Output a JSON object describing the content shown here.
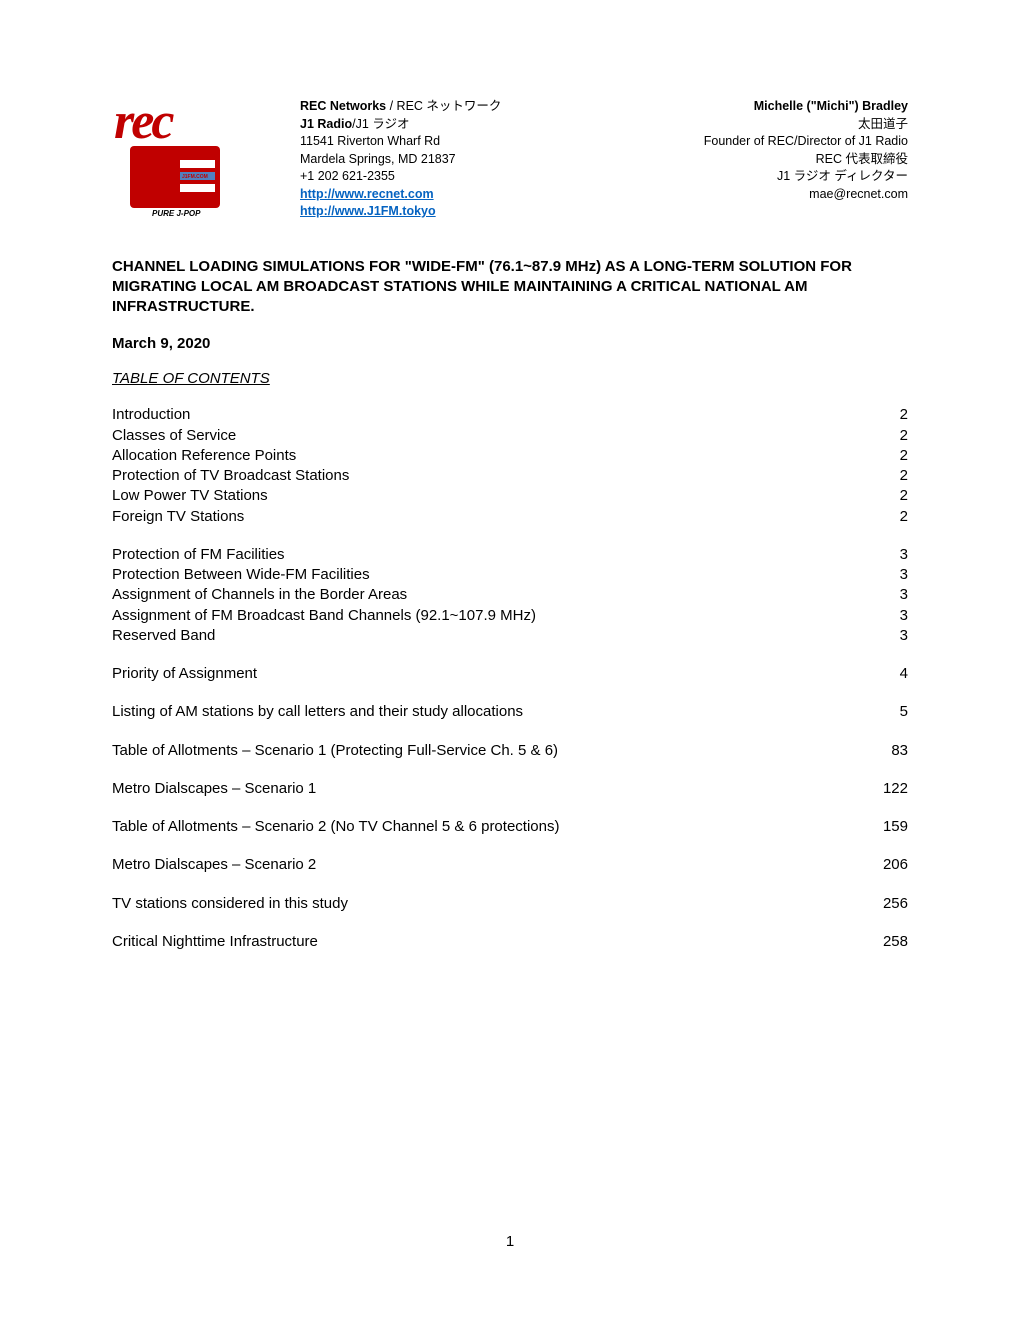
{
  "logo": {
    "rec_text": "rec",
    "j1_text": "J1",
    "subtext_url": "J1FM.COM",
    "subtext_tag": "PURE J-POP",
    "primary_color": "#c00000",
    "white": "#ffffff"
  },
  "company": {
    "line1_bold": "REC Networks",
    "line1_rest": " / REC ネットワーク",
    "line2_bold_en": "J1 Radio",
    "line2_rest": "/J1 ラジオ",
    "addr1": "11541 Riverton Wharf Rd",
    "addr2": "Mardela Springs, MD 21837",
    "phone": "+1 202 621-2355",
    "url1": "http://www.recnet.com",
    "url2": "http://www.J1FM.tokyo"
  },
  "contact": {
    "name": "Michelle (\"Michi\") Bradley",
    "name_ja": "太田道子",
    "role": "Founder of REC/Director of J1 Radio",
    "role_ja1": "REC 代表取締役",
    "role_ja2": "J1 ラジオ ディレクター",
    "email": "mae@recnet.com"
  },
  "title": "CHANNEL LOADING SIMULATIONS FOR \"WIDE-FM\" (76.1~87.9 MHz) AS A LONG-TERM SOLUTION FOR MIGRATING LOCAL AM BROADCAST STATIONS WHILE MAINTAINING A CRITICAL NATIONAL AM INFRASTRUCTURE.",
  "date": "March 9, 2020",
  "toc_heading": "TABLE OF CONTENTS",
  "toc": [
    {
      "items": [
        {
          "label": "Introduction",
          "page": "2"
        },
        {
          "label": "Classes of Service",
          "page": "2"
        },
        {
          "label": "Allocation Reference Points",
          "page": "2"
        },
        {
          "label": "Protection of TV Broadcast Stations",
          "page": "2"
        },
        {
          "label": "Low Power TV Stations",
          "page": "2"
        },
        {
          "label": "Foreign TV Stations",
          "page": "2"
        }
      ]
    },
    {
      "items": [
        {
          "label": "Protection of FM Facilities",
          "page": "3"
        },
        {
          "label": "Protection Between Wide-FM Facilities",
          "page": "3"
        },
        {
          "label": "Assignment of Channels in the Border Areas",
          "page": "3"
        },
        {
          "label": "Assignment of FM Broadcast Band Channels (92.1~107.9 MHz)",
          "page": "3"
        },
        {
          "label": "Reserved Band",
          "page": "3"
        }
      ]
    },
    {
      "items": [
        {
          "label": "Priority of Assignment",
          "page": "4"
        }
      ]
    },
    {
      "items": [
        {
          "label": "Listing of AM stations by call letters and their study allocations",
          "page": "5"
        }
      ]
    },
    {
      "items": [
        {
          "label": "Table of Allotments – Scenario 1 (Protecting Full-Service Ch. 5 & 6)",
          "page": "83"
        }
      ]
    },
    {
      "items": [
        {
          "label": "Metro Dialscapes – Scenario 1",
          "page": "122"
        }
      ]
    },
    {
      "items": [
        {
          "label": "Table of Allotments – Scenario 2 (No TV Channel 5 & 6 protections)",
          "page": "159"
        }
      ]
    },
    {
      "items": [
        {
          "label": "Metro Dialscapes – Scenario 2",
          "page": "206"
        }
      ]
    },
    {
      "items": [
        {
          "label": "TV stations considered in this study",
          "page": "256"
        }
      ]
    },
    {
      "items": [
        {
          "label": "Critical Nighttime Infrastructure",
          "page": "258"
        }
      ]
    }
  ],
  "page_number": "1"
}
